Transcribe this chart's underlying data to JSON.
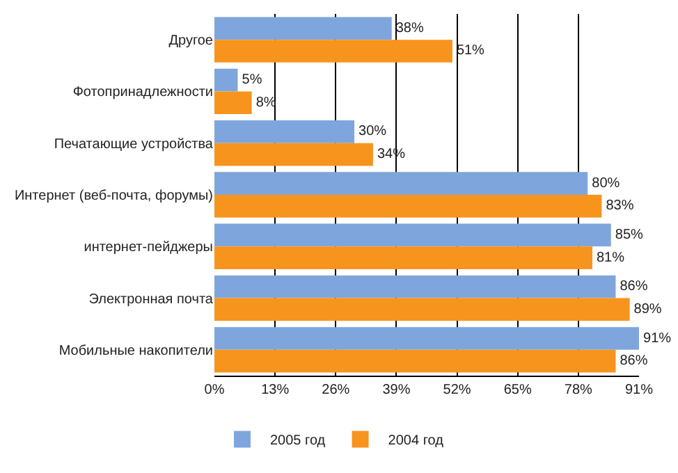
{
  "chart_data": {
    "type": "bar",
    "orientation": "horizontal",
    "categories": [
      "Другое",
      "Фотопринадлежности",
      "Печатающие устройства",
      "Интернет (веб-почта, форумы)",
      "интернет-пейджеры",
      "Электронная почта",
      "Мобильные накопители"
    ],
    "series": [
      {
        "name": "2005 год",
        "color": "#7fa6dc",
        "values": [
          38,
          5,
          30,
          80,
          85,
          86,
          91
        ],
        "value_labels": [
          "38%",
          "5%",
          "30%",
          "80%",
          "85%",
          "86%",
          "91%"
        ]
      },
      {
        "name": "2004 год",
        "color": "#f7941d",
        "values": [
          51,
          8,
          34,
          83,
          81,
          89,
          86
        ],
        "value_labels": [
          "51%",
          "8%",
          "34%",
          "83%",
          "81%",
          "89%",
          "86%"
        ]
      }
    ],
    "xlim": [
      0,
      91
    ],
    "xticks": [
      {
        "value": 0,
        "label": "0%"
      },
      {
        "value": 13,
        "label": "13%"
      },
      {
        "value": 26,
        "label": "26%"
      },
      {
        "value": 39,
        "label": "39%"
      },
      {
        "value": 52,
        "label": "52%"
      },
      {
        "value": 65,
        "label": "65%"
      },
      {
        "value": 78,
        "label": "78%"
      },
      {
        "value": 91,
        "label": "91%"
      }
    ],
    "grid": "x",
    "legend": "bottom"
  }
}
